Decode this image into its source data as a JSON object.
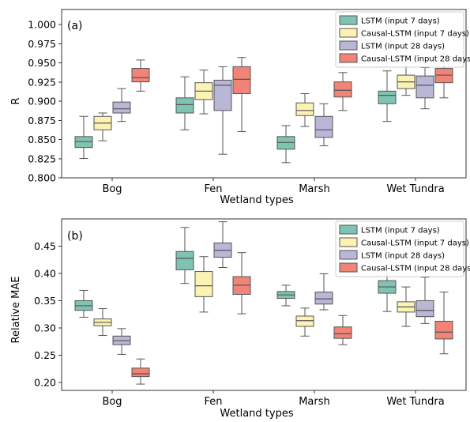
{
  "chart_data": [
    {
      "type": "box",
      "panel_label": "(a)",
      "title": "",
      "xlabel": "Wetland types",
      "ylabel": "R",
      "ylim": [
        0.8,
        1.0
      ],
      "yticks": [
        "0.800",
        "0.825",
        "0.850",
        "0.875",
        "0.900",
        "0.925",
        "0.950",
        "0.975",
        "1.000"
      ],
      "grid": false,
      "legend_position": "top-right",
      "categories": [
        "Bog",
        "Fen",
        "Marsh",
        "Wet Tundra"
      ],
      "series": [
        {
          "name": "LSTM (input 7 days)",
          "color": "#7fc4b3",
          "boxes": [
            {
              "min": 0.823,
              "q1": 0.836,
              "median": 0.843,
              "q3": 0.849,
              "max": 0.873
            },
            {
              "min": 0.857,
              "q1": 0.877,
              "median": 0.887,
              "q3": 0.895,
              "max": 0.92
            },
            {
              "min": 0.818,
              "q1": 0.834,
              "median": 0.842,
              "q3": 0.849,
              "max": 0.862
            },
            {
              "min": 0.867,
              "q1": 0.888,
              "median": 0.898,
              "q3": 0.903,
              "max": 0.927
            }
          ]
        },
        {
          "name": "Causal-LSTM (input 7 days)",
          "color": "#fbf3b4",
          "boxes": [
            {
              "min": 0.844,
              "q1": 0.857,
              "median": 0.865,
              "q3": 0.873,
              "max": 0.877
            },
            {
              "min": 0.876,
              "q1": 0.893,
              "median": 0.903,
              "q3": 0.913,
              "max": 0.928
            },
            {
              "min": 0.861,
              "q1": 0.874,
              "median": 0.88,
              "q3": 0.889,
              "max": 0.9
            },
            {
              "min": 0.898,
              "q1": 0.906,
              "median": 0.914,
              "q3": 0.922,
              "max": 0.943
            }
          ]
        },
        {
          "name": "LSTM (input 28 days)",
          "color": "#b9b6d6",
          "boxes": [
            {
              "min": 0.867,
              "q1": 0.877,
              "median": 0.882,
              "q3": 0.89,
              "max": 0.906
            },
            {
              "min": 0.828,
              "q1": 0.88,
              "median": 0.91,
              "q3": 0.916,
              "max": 0.932
            },
            {
              "min": 0.838,
              "q1": 0.848,
              "median": 0.857,
              "q3": 0.873,
              "max": 0.888
            },
            {
              "min": 0.882,
              "q1": 0.895,
              "median": 0.91,
              "q3": 0.921,
              "max": 0.931
            }
          ]
        },
        {
          "name": "Causal-LSTM (input 28 days)",
          "color": "#f18377",
          "boxes": [
            {
              "min": 0.903,
              "q1": 0.914,
              "median": 0.919,
              "q3": 0.93,
              "max": 0.94
            },
            {
              "min": 0.855,
              "q1": 0.9,
              "median": 0.917,
              "q3": 0.932,
              "max": 0.943
            },
            {
              "min": 0.88,
              "q1": 0.896,
              "median": 0.904,
              "q3": 0.914,
              "max": 0.925
            },
            {
              "min": 0.895,
              "q1": 0.913,
              "median": 0.922,
              "q3": 0.93,
              "max": 0.948
            }
          ]
        }
      ]
    },
    {
      "type": "box",
      "panel_label": "(b)",
      "title": "",
      "xlabel": "Wetland types",
      "ylabel": "Relative MAE",
      "ylim": [
        0.185,
        0.485
      ],
      "yticks": [
        "0.20",
        "0.25",
        "0.30",
        "0.35",
        "0.40",
        "0.45"
      ],
      "grid": false,
      "legend_position": "top-right",
      "categories": [
        "Bog",
        "Fen",
        "Marsh",
        "Wet Tundra"
      ],
      "series": [
        {
          "name": "LSTM (input 7 days)",
          "color": "#7fc4b3",
          "boxes": [
            {
              "min": 0.313,
              "q1": 0.325,
              "median": 0.333,
              "q3": 0.342,
              "max": 0.36
            },
            {
              "min": 0.372,
              "q1": 0.396,
              "median": 0.416,
              "q3": 0.428,
              "max": 0.47
            },
            {
              "min": 0.333,
              "q1": 0.346,
              "median": 0.352,
              "q3": 0.358,
              "max": 0.369
            },
            {
              "min": 0.323,
              "q1": 0.355,
              "median": 0.366,
              "q3": 0.377,
              "max": 0.398
            }
          ]
        },
        {
          "name": "Causal-LSTM (input 7 days)",
          "color": "#fbf3b4",
          "boxes": [
            {
              "min": 0.281,
              "q1": 0.298,
              "median": 0.304,
              "q3": 0.31,
              "max": 0.328
            },
            {
              "min": 0.322,
              "q1": 0.349,
              "median": 0.368,
              "q3": 0.393,
              "max": 0.419
            },
            {
              "min": 0.28,
              "q1": 0.297,
              "median": 0.307,
              "q3": 0.315,
              "max": 0.329
            },
            {
              "min": 0.297,
              "q1": 0.322,
              "median": 0.331,
              "q3": 0.34,
              "max": 0.366
            }
          ]
        },
        {
          "name": "LSTM (input 28 days)",
          "color": "#b9b6d6",
          "boxes": [
            {
              "min": 0.248,
              "q1": 0.265,
              "median": 0.272,
              "q3": 0.28,
              "max": 0.293
            },
            {
              "min": 0.4,
              "q1": 0.418,
              "median": 0.43,
              "q3": 0.443,
              "max": 0.48
            },
            {
              "min": 0.326,
              "q1": 0.336,
              "median": 0.345,
              "q3": 0.357,
              "max": 0.389
            },
            {
              "min": 0.302,
              "q1": 0.314,
              "median": 0.325,
              "q3": 0.342,
              "max": 0.383
            }
          ]
        },
        {
          "name": "Causal-LSTM (input 28 days)",
          "color": "#f18377",
          "boxes": [
            {
              "min": 0.196,
              "q1": 0.209,
              "median": 0.214,
              "q3": 0.224,
              "max": 0.24
            },
            {
              "min": 0.319,
              "q1": 0.353,
              "median": 0.369,
              "q3": 0.384,
              "max": 0.426
            },
            {
              "min": 0.265,
              "q1": 0.276,
              "median": 0.284,
              "q3": 0.296,
              "max": 0.316
            },
            {
              "min": 0.249,
              "q1": 0.275,
              "median": 0.287,
              "q3": 0.306,
              "max": 0.357
            }
          ]
        }
      ]
    }
  ]
}
